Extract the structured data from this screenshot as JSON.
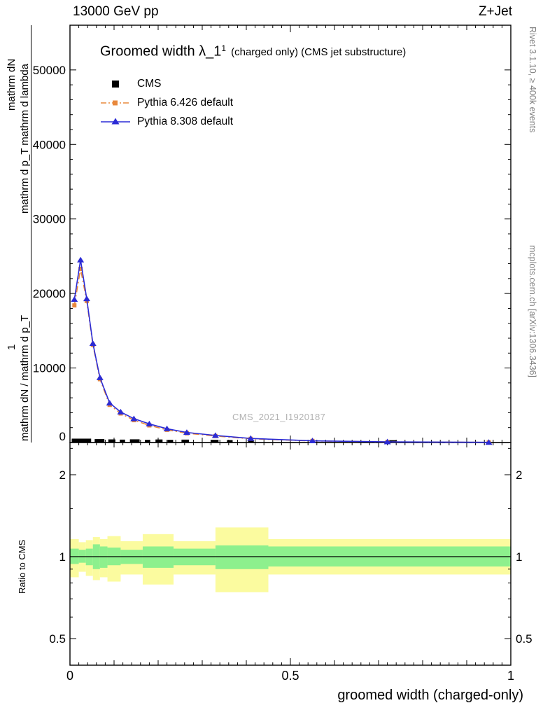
{
  "header": {
    "left": "13000 GeV pp",
    "right": "Z+Jet"
  },
  "titles": {
    "main": "Groomed width λ_1",
    "sup": "1",
    "suffix": "(charged only) (CMS jet substructure)"
  },
  "legend": [
    {
      "label": "CMS",
      "marker": "black-square"
    },
    {
      "label": "Pythia 6.426 default",
      "marker": "orange-square-dashdot-line"
    },
    {
      "label": "Pythia 8.308 default",
      "marker": "blue-triangle-solid-line"
    }
  ],
  "watermark": "CMS_2021_I1920187",
  "side_notes": {
    "top_right": "Rivet 3.1.10, ≥ 400k events",
    "bottom_right": "mcplots.cern.ch [arXiv:1306.3436]"
  },
  "colors": {
    "cms": "#000000",
    "py6": "#e8883c",
    "py8": "#2b2bd5",
    "band_yellow": "#fbfb9f",
    "band_green": "#8df08d"
  },
  "axes": {
    "x": {
      "label": "groomed width (charged-only)",
      "min": 0,
      "max": 1,
      "ticks": [
        0,
        0.5,
        1
      ],
      "labels": [
        "0",
        "0.5",
        "1"
      ]
    },
    "y_main": {
      "min": 0,
      "max": 56000,
      "ticks": [
        0,
        10000,
        20000,
        30000,
        40000,
        50000
      ],
      "labels": [
        "0",
        "10000",
        "20000",
        "30000",
        "40000",
        "50000"
      ],
      "label_fragments": {
        "outer_top": "mathrm dN",
        "outer_mid": "1",
        "inner_top": "mathrm d p_T mathrm d lambda",
        "inner_bottom": "mathrm dN / mathrm d p_T"
      }
    },
    "y_ratio": {
      "label": "Ratio to CMS",
      "scale": "log",
      "min": 0.4,
      "max": 2.63,
      "ticks": [
        0.5,
        1,
        2
      ],
      "labels": [
        "0.5",
        "1",
        "2"
      ],
      "minor_ticks": [
        0.6,
        0.7,
        0.8,
        0.9,
        1.5,
        2.5
      ]
    }
  },
  "chart_data": [
    {
      "type": "line",
      "title": "Groomed width λ_1^1 (charged only) (CMS jet substructure)",
      "xlabel": "groomed width (charged-only)",
      "ylabel": "mathrm dN / mathrm d p_T mathrm d lambda",
      "xlim": [
        0,
        1
      ],
      "ylim": [
        0,
        56000
      ],
      "legend_position": "top-left",
      "series": [
        {
          "name": "CMS",
          "style": "filled-bins",
          "color": "#000000",
          "bins": [
            [
              0.004,
              0.048,
              520
            ],
            [
              0.056,
              0.078,
              460
            ],
            [
              0.087,
              0.103,
              420
            ],
            [
              0.113,
              0.125,
              390
            ],
            [
              0.136,
              0.158,
              430
            ],
            [
              0.17,
              0.182,
              360
            ],
            [
              0.194,
              0.21,
              410
            ],
            [
              0.221,
              0.234,
              360
            ],
            [
              0.253,
              0.27,
              390
            ],
            [
              0.319,
              0.337,
              360
            ],
            [
              0.356,
              0.369,
              330
            ],
            [
              0.404,
              0.417,
              340
            ],
            [
              0.719,
              0.741,
              310
            ]
          ]
        },
        {
          "name": "Pythia 6.426 default",
          "color": "#e8883c",
          "line": "dashdot",
          "marker": "square",
          "x": [
            0.01,
            0.024,
            0.038,
            0.052,
            0.068,
            0.09,
            0.115,
            0.145,
            0.18,
            0.22,
            0.265,
            0.33,
            0.41,
            0.55,
            0.72,
            0.95
          ],
          "y": [
            18400,
            23300,
            19000,
            13100,
            8500,
            5050,
            3900,
            3000,
            2300,
            1700,
            1250,
            870,
            500,
            210,
            80,
            20
          ]
        },
        {
          "name": "Pythia 8.308 default",
          "color": "#2b2bd5",
          "line": "solid",
          "marker": "triangle",
          "x": [
            0.01,
            0.024,
            0.038,
            0.052,
            0.068,
            0.09,
            0.115,
            0.145,
            0.18,
            0.22,
            0.265,
            0.33,
            0.41,
            0.55,
            0.72,
            0.95
          ],
          "y": [
            19200,
            24500,
            19300,
            13300,
            8700,
            5300,
            4100,
            3200,
            2500,
            1850,
            1350,
            950,
            550,
            230,
            90,
            25
          ]
        }
      ]
    },
    {
      "type": "ratio-band",
      "ylabel": "Ratio to CMS",
      "yscale": "log",
      "ylim": [
        0.4,
        2.63
      ],
      "reference_line": 1,
      "bands": [
        {
          "x0": 0.0,
          "x1": 0.02,
          "outer": [
            0.84,
            1.16
          ],
          "inner": [
            0.94,
            1.07
          ]
        },
        {
          "x0": 0.02,
          "x1": 0.036,
          "outer": [
            0.88,
            1.13
          ],
          "inner": [
            0.95,
            1.06
          ]
        },
        {
          "x0": 0.036,
          "x1": 0.052,
          "outer": [
            0.85,
            1.15
          ],
          "inner": [
            0.93,
            1.07
          ]
        },
        {
          "x0": 0.052,
          "x1": 0.068,
          "outer": [
            0.82,
            1.18
          ],
          "inner": [
            0.9,
            1.11
          ]
        },
        {
          "x0": 0.068,
          "x1": 0.085,
          "outer": [
            0.84,
            1.16
          ],
          "inner": [
            0.91,
            1.09
          ]
        },
        {
          "x0": 0.085,
          "x1": 0.115,
          "outer": [
            0.81,
            1.19
          ],
          "inner": [
            0.93,
            1.08
          ]
        },
        {
          "x0": 0.115,
          "x1": 0.165,
          "outer": [
            0.86,
            1.14
          ],
          "inner": [
            0.94,
            1.06
          ]
        },
        {
          "x0": 0.165,
          "x1": 0.235,
          "outer": [
            0.79,
            1.21
          ],
          "inner": [
            0.91,
            1.09
          ]
        },
        {
          "x0": 0.235,
          "x1": 0.33,
          "outer": [
            0.86,
            1.14
          ],
          "inner": [
            0.93,
            1.07
          ]
        },
        {
          "x0": 0.33,
          "x1": 0.45,
          "outer": [
            0.74,
            1.28
          ],
          "inner": [
            0.9,
            1.1
          ]
        },
        {
          "x0": 0.45,
          "x1": 1.0,
          "outer": [
            0.86,
            1.16
          ],
          "inner": [
            0.92,
            1.09
          ]
        }
      ]
    }
  ]
}
